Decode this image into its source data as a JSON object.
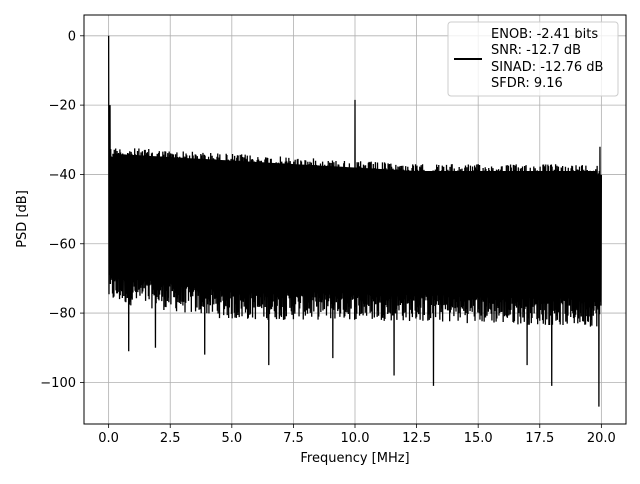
{
  "chart_data": {
    "type": "line",
    "title": "",
    "xlabel": "Frequency [MHz]",
    "ylabel": "PSD [dB]",
    "xlim": [
      -1.0,
      21.0
    ],
    "ylim": [
      -112,
      6
    ],
    "xticks": [
      0.0,
      2.5,
      5.0,
      7.5,
      10.0,
      12.5,
      15.0,
      17.5,
      20.0
    ],
    "xtick_labels": [
      "0.0",
      "2.5",
      "5.0",
      "7.5",
      "10.0",
      "12.5",
      "15.0",
      "17.5",
      "20.0"
    ],
    "yticks": [
      0,
      -20,
      -40,
      -60,
      -80,
      -100
    ],
    "ytick_labels": [
      "0",
      "−20",
      "−40",
      "−60",
      "−80",
      "−100"
    ],
    "grid": true,
    "legend_position": "top-right",
    "series": [
      {
        "name": "ENOB: -2.41 bits\nSNR: -12.7 dB\nSINAD: -12.76 dB\nSFDR: 9.16",
        "color": "#000000",
        "description_points": {
          "envelope_top": [
            [
              0.1,
              -32
            ],
            [
              2.5,
              -33
            ],
            [
              5.0,
              -34
            ],
            [
              7.5,
              -35
            ],
            [
              10.0,
              -36
            ],
            [
              12.5,
              -37
            ],
            [
              15.0,
              -37
            ],
            [
              17.5,
              -37
            ],
            [
              20.0,
              -37
            ]
          ],
          "envelope_bottom_typical": [
            [
              0.1,
              -75
            ],
            [
              5.0,
              -80
            ],
            [
              10.0,
              -80
            ],
            [
              15.0,
              -81
            ],
            [
              20.0,
              -82
            ]
          ],
          "peaks": [
            [
              0.0,
              0
            ],
            [
              0.05,
              -20
            ],
            [
              10.0,
              -18.5
            ],
            [
              19.95,
              -32
            ]
          ],
          "dips": [
            [
              0.8,
              -91
            ],
            [
              1.9,
              -90
            ],
            [
              3.9,
              -92
            ],
            [
              6.5,
              -95
            ],
            [
              9.1,
              -93
            ],
            [
              11.6,
              -98
            ],
            [
              13.2,
              -101
            ],
            [
              17.0,
              -95
            ],
            [
              18.0,
              -101
            ],
            [
              19.9,
              -107
            ]
          ]
        }
      }
    ]
  },
  "legend": {
    "lines": [
      "ENOB: -2.41 bits",
      "SNR: -12.7 dB",
      "SINAD: -12.76 dB",
      "SFDR: 9.16"
    ]
  }
}
